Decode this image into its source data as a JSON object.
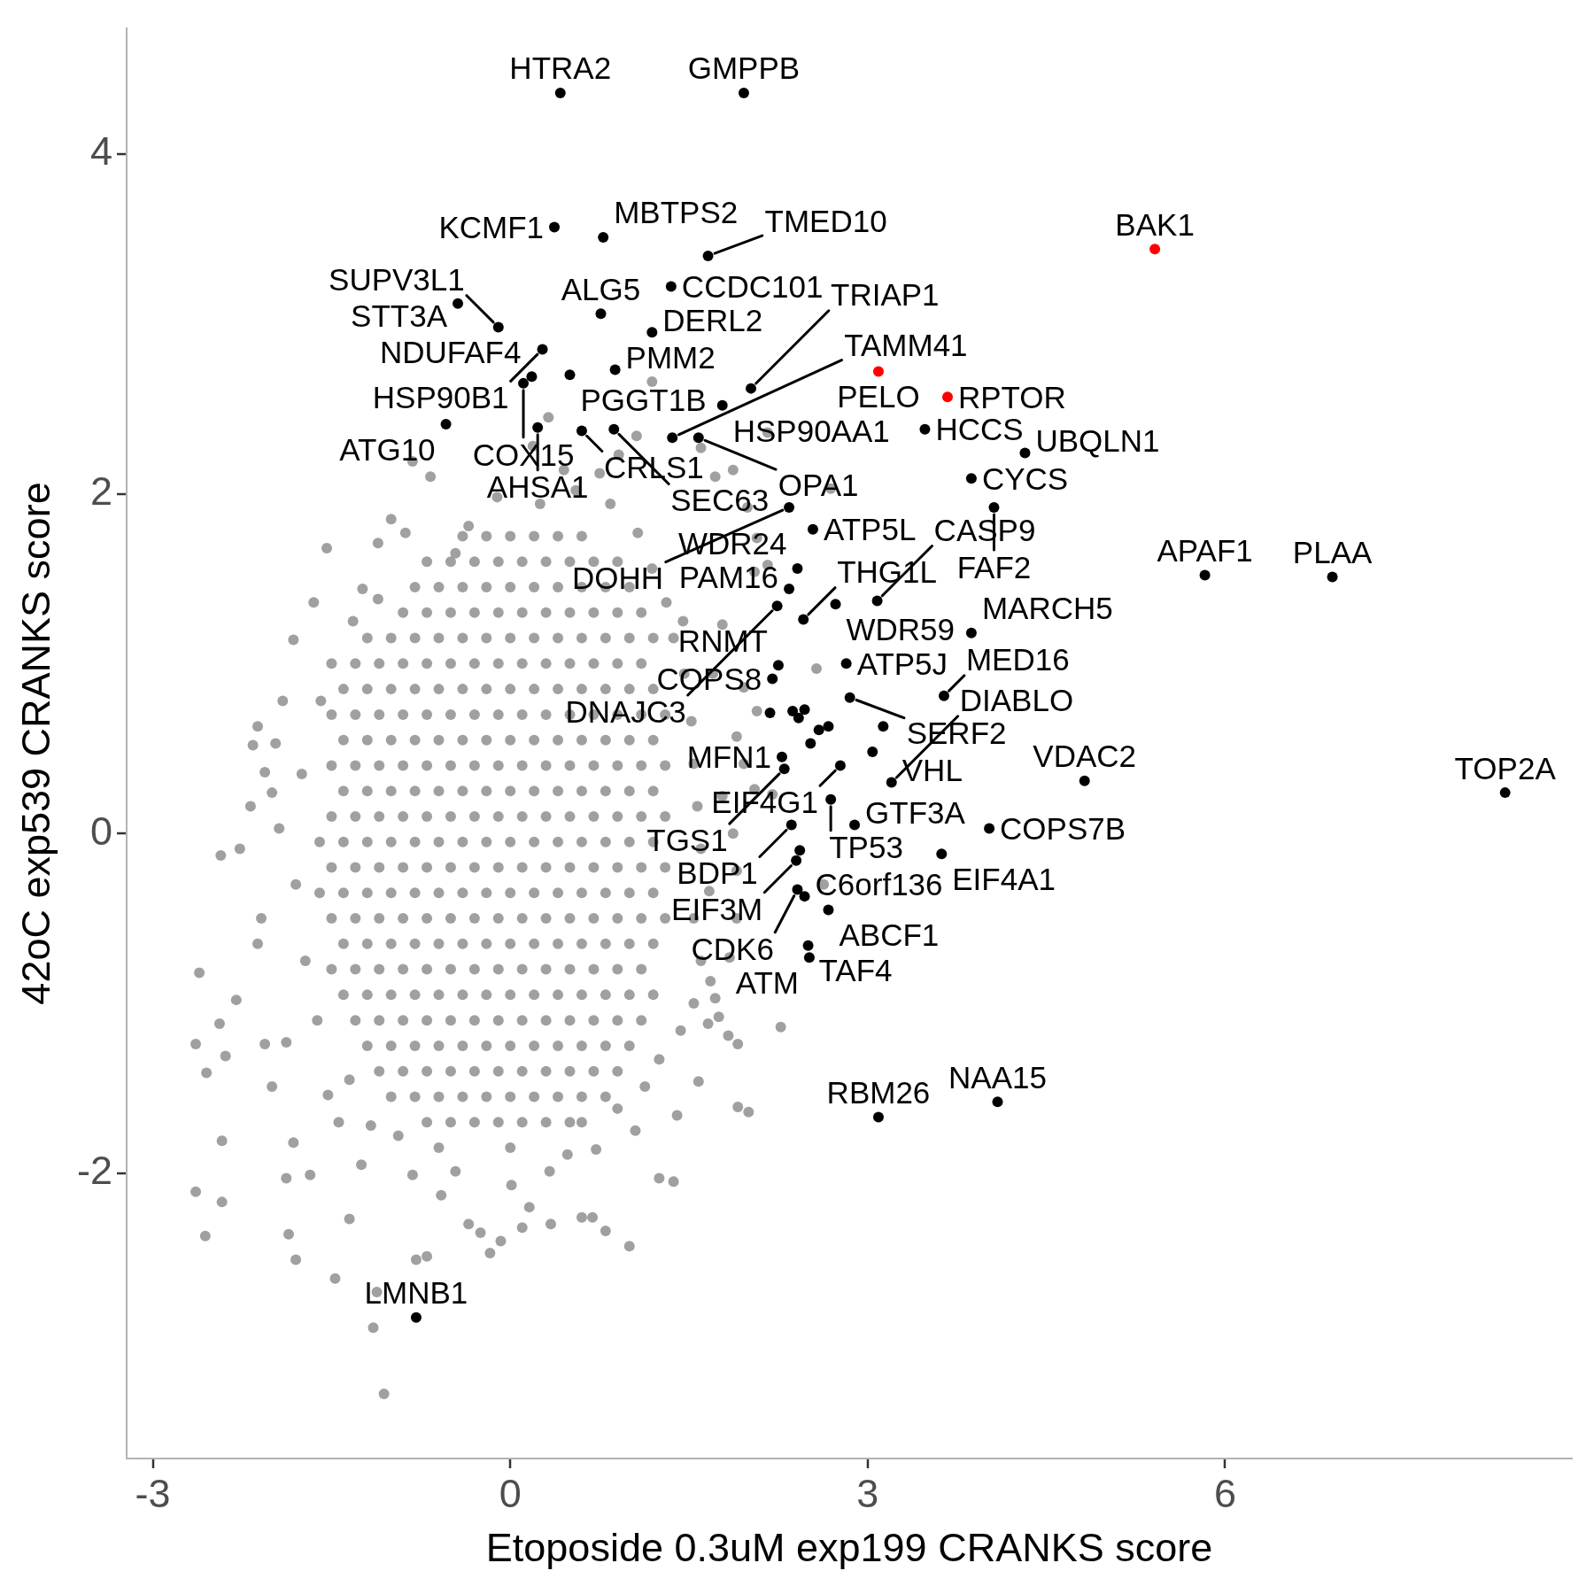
{
  "chart_data": {
    "type": "scatter",
    "xlabel": "Etoposide 0.3uM exp199 CRANKS score",
    "ylabel": "42oC exp539 CRANKS score",
    "xlim": [
      -3.22,
      8.91
    ],
    "ylim": [
      -3.68,
      4.74
    ],
    "xticks": [
      -3,
      0,
      3,
      6
    ],
    "yticks": [
      -2,
      0,
      2,
      4
    ],
    "marker": "circle",
    "series": [
      {
        "color": "#a0a0a0",
        "x": [
          -0.4,
          -0.2,
          0,
          0.2,
          0.4,
          0.6,
          -0.7,
          -0.5,
          -0.3,
          -0.1,
          0.1,
          0.3,
          0.5,
          0.7,
          0.9,
          -0.8,
          -0.6,
          -0.4,
          -0.2,
          0,
          0.2,
          0.4,
          0.6,
          0.8,
          1,
          -0.9,
          -0.7,
          -0.5,
          -0.3,
          -0.1,
          0.1,
          0.3,
          0.5,
          0.7,
          0.9,
          1.1,
          -1.2,
          -1,
          -0.8,
          -0.6,
          -0.4,
          -0.2,
          0,
          0.2,
          0.4,
          0.6,
          0.8,
          1,
          1.2,
          -1.3,
          -1.1,
          -0.9,
          -0.7,
          -0.5,
          -0.3,
          -0.1,
          0.1,
          0.3,
          0.5,
          0.7,
          0.9,
          1.1,
          -1.4,
          -1.2,
          -1,
          -0.8,
          -0.6,
          -0.4,
          -0.2,
          0,
          0.2,
          0.4,
          0.6,
          0.8,
          1,
          1.2,
          -1.5,
          -1.3,
          -1.1,
          -0.9,
          -0.7,
          -0.5,
          -0.3,
          -0.1,
          0.1,
          0.3,
          0.5,
          0.7,
          0.9,
          1.1,
          1.3,
          -1.4,
          -1.2,
          -1,
          -0.8,
          -0.6,
          -0.4,
          -0.2,
          0,
          0.2,
          0.4,
          0.6,
          0.8,
          1,
          1.2,
          -1.5,
          -1.3,
          -1.1,
          -0.9,
          -0.7,
          -0.5,
          -0.3,
          -0.1,
          0.1,
          0.3,
          0.5,
          0.7,
          0.9,
          1.1,
          1.3,
          -1.4,
          -1.2,
          -1,
          -0.8,
          -0.6,
          -0.4,
          -0.2,
          0,
          0.2,
          0.4,
          0.6,
          0.8,
          1,
          1.2,
          -1.5,
          -1.3,
          -1.1,
          -0.9,
          -0.7,
          -0.5,
          -0.3,
          -0.1,
          0.1,
          0.3,
          0.5,
          0.7,
          0.9,
          1.1,
          1.3,
          -1.6,
          -1.4,
          -1.2,
          -1,
          -0.8,
          -0.6,
          -0.4,
          -0.2,
          0,
          0.2,
          0.4,
          0.6,
          0.8,
          1,
          1.2,
          -1.5,
          -1.3,
          -1.1,
          -0.9,
          -0.7,
          -0.5,
          -0.3,
          -0.1,
          0.1,
          0.3,
          0.5,
          0.7,
          0.9,
          1.1,
          1.3,
          -1.6,
          -1.4,
          -1.2,
          -1,
          -0.8,
          -0.6,
          -0.4,
          -0.2,
          0,
          0.2,
          0.4,
          0.6,
          0.8,
          1,
          1.2,
          -1.5,
          -1.3,
          -1.1,
          -0.9,
          -0.7,
          -0.5,
          -0.3,
          -0.1,
          0.1,
          0.3,
          0.5,
          0.7,
          0.9,
          1.1,
          1.3,
          -1.4,
          -1.2,
          -1,
          -0.8,
          -0.6,
          -0.4,
          -0.2,
          0,
          0.2,
          0.4,
          0.6,
          0.8,
          1,
          1.2,
          -1.5,
          -1.3,
          -1.1,
          -0.9,
          -0.7,
          -0.5,
          -0.3,
          -0.1,
          0.1,
          0.3,
          0.5,
          0.7,
          0.9,
          1.1,
          -1.4,
          -1.2,
          -1,
          -0.8,
          -0.6,
          -0.4,
          -0.2,
          0,
          0.2,
          0.4,
          0.6,
          0.8,
          1,
          1.2,
          -1.3,
          -1.1,
          -0.9,
          -0.7,
          -0.5,
          -0.3,
          -0.1,
          0.1,
          0.3,
          0.5,
          0.7,
          0.9,
          1.1,
          -1.2,
          -1,
          -0.8,
          -0.6,
          -0.4,
          -0.2,
          0,
          0.2,
          0.4,
          0.6,
          0.8,
          1,
          -1.1,
          -0.9,
          -0.7,
          -0.5,
          -0.3,
          -0.1,
          0.1,
          0.3,
          0.5,
          0.7,
          0.9,
          -1,
          -0.8,
          -0.6,
          -0.4,
          -0.2,
          0,
          0.2,
          0.4,
          0.6,
          0.8,
          -0.7,
          -0.5,
          -0.3,
          -0.1,
          0.1,
          0.3,
          0.5,
          -1.54,
          -1.65,
          -1.82,
          -2.12,
          -2.16,
          -2.43,
          -2.27,
          -2.61,
          -2.64,
          -2.55,
          -2.44,
          -2.39,
          -2.42,
          -2.64,
          -2.42,
          -2.56,
          -1.8,
          -1.47,
          -1.35,
          -1.88,
          -1.86,
          -1.12,
          -1.15,
          -0.79,
          -0.7,
          -1.06,
          -0.35,
          -0.25,
          -0.08,
          -0.17,
          0.1,
          0.34,
          0.6,
          0.69,
          0.8,
          1,
          1.25,
          1.37,
          1.4,
          1.58,
          1.91,
          2,
          1.91,
          1.83,
          1.66,
          1.75,
          1.72,
          1.68,
          1.84,
          1.9,
          1.9,
          1.87,
          1.78,
          2.05,
          1.96,
          1.9,
          1.96,
          1.7,
          1.78,
          2.05,
          1.99,
          1.87,
          1.72,
          1.6,
          1.19,
          1.06,
          0.91,
          0.75,
          0.45,
          0.19,
          -0.67,
          -0.82,
          -1,
          -0.88,
          -1.11,
          -1.24,
          -1.11,
          -1.32,
          -1.5,
          -1.59,
          -1.91,
          -1.97,
          -2.06,
          -2,
          -2.18,
          -1.94,
          -2.09,
          -2.12,
          -2.3,
          -2.06,
          -1.88,
          -2,
          -1.82,
          -1.68,
          -1.53,
          -1.44,
          -1.17,
          -0.94,
          -0.82,
          -0.58,
          -0.46,
          0.01,
          0.16,
          0.33,
          0.48,
          0.72,
          0.9,
          1.13,
          1.25,
          1.43,
          1.54,
          1.6,
          1.54,
          1.67,
          1.6,
          1.57,
          1.54,
          1.52,
          1.46,
          1.37,
          1.31,
          1.19,
          1.07,
          0.84,
          0.55,
          0.25,
          -0.11,
          -0.35,
          -0.46,
          2.27,
          2.16,
          2.69,
          2.57,
          0.32,
          2.16,
          2.07,
          2.2,
          2.63,
          2.07,
          -1.75,
          -1.8,
          -1.72,
          -1.62,
          -1.35,
          -1.25,
          -0.6,
          0,
          0.6,
          1.05,
          1.45
        ],
        "values": [
          1.75,
          1.75,
          1.75,
          1.75,
          1.75,
          1.75,
          1.6,
          1.6,
          1.6,
          1.6,
          1.6,
          1.6,
          1.6,
          1.6,
          1.6,
          1.45,
          1.45,
          1.45,
          1.45,
          1.45,
          1.45,
          1.45,
          1.45,
          1.45,
          1.45,
          1.3,
          1.3,
          1.3,
          1.3,
          1.3,
          1.3,
          1.3,
          1.3,
          1.3,
          1.3,
          1.3,
          1.15,
          1.15,
          1.15,
          1.15,
          1.15,
          1.15,
          1.15,
          1.15,
          1.15,
          1.15,
          1.15,
          1.15,
          1.15,
          1,
          1,
          1,
          1,
          1,
          1,
          1,
          1,
          1,
          1,
          1,
          1,
          1,
          0.85,
          0.85,
          0.85,
          0.85,
          0.85,
          0.85,
          0.85,
          0.85,
          0.85,
          0.85,
          0.85,
          0.85,
          0.85,
          0.85,
          0.7,
          0.7,
          0.7,
          0.7,
          0.7,
          0.7,
          0.7,
          0.7,
          0.7,
          0.7,
          0.7,
          0.7,
          0.7,
          0.7,
          0.7,
          0.55,
          0.55,
          0.55,
          0.55,
          0.55,
          0.55,
          0.55,
          0.55,
          0.55,
          0.55,
          0.55,
          0.55,
          0.55,
          0.55,
          0.4,
          0.4,
          0.4,
          0.4,
          0.4,
          0.4,
          0.4,
          0.4,
          0.4,
          0.4,
          0.4,
          0.4,
          0.4,
          0.4,
          0.4,
          0.25,
          0.25,
          0.25,
          0.25,
          0.25,
          0.25,
          0.25,
          0.25,
          0.25,
          0.25,
          0.25,
          0.25,
          0.25,
          0.25,
          0.1,
          0.1,
          0.1,
          0.1,
          0.1,
          0.1,
          0.1,
          0.1,
          0.1,
          0.1,
          0.1,
          0.1,
          0.1,
          0.1,
          0.1,
          -0.05,
          -0.05,
          -0.05,
          -0.05,
          -0.05,
          -0.05,
          -0.05,
          -0.05,
          -0.05,
          -0.05,
          -0.05,
          -0.05,
          -0.05,
          -0.05,
          -0.05,
          -0.2,
          -0.2,
          -0.2,
          -0.2,
          -0.2,
          -0.2,
          -0.2,
          -0.2,
          -0.2,
          -0.2,
          -0.2,
          -0.2,
          -0.2,
          -0.2,
          -0.2,
          -0.35,
          -0.35,
          -0.35,
          -0.35,
          -0.35,
          -0.35,
          -0.35,
          -0.35,
          -0.35,
          -0.35,
          -0.35,
          -0.35,
          -0.35,
          -0.35,
          -0.35,
          -0.5,
          -0.5,
          -0.5,
          -0.5,
          -0.5,
          -0.5,
          -0.5,
          -0.5,
          -0.5,
          -0.5,
          -0.5,
          -0.5,
          -0.5,
          -0.5,
          -0.5,
          -0.65,
          -0.65,
          -0.65,
          -0.65,
          -0.65,
          -0.65,
          -0.65,
          -0.65,
          -0.65,
          -0.65,
          -0.65,
          -0.65,
          -0.65,
          -0.65,
          -0.8,
          -0.8,
          -0.8,
          -0.8,
          -0.8,
          -0.8,
          -0.8,
          -0.8,
          -0.8,
          -0.8,
          -0.8,
          -0.8,
          -0.8,
          -0.8,
          -0.95,
          -0.95,
          -0.95,
          -0.95,
          -0.95,
          -0.95,
          -0.95,
          -0.95,
          -0.95,
          -0.95,
          -0.95,
          -0.95,
          -0.95,
          -0.95,
          -1.1,
          -1.1,
          -1.1,
          -1.1,
          -1.1,
          -1.1,
          -1.1,
          -1.1,
          -1.1,
          -1.1,
          -1.1,
          -1.1,
          -1.1,
          -1.25,
          -1.25,
          -1.25,
          -1.25,
          -1.25,
          -1.25,
          -1.25,
          -1.25,
          -1.25,
          -1.25,
          -1.25,
          -1.25,
          -1.4,
          -1.4,
          -1.4,
          -1.4,
          -1.4,
          -1.4,
          -1.4,
          -1.4,
          -1.4,
          -1.4,
          -1.4,
          -1.55,
          -1.55,
          -1.55,
          -1.55,
          -1.55,
          -1.55,
          -1.55,
          -1.55,
          -1.55,
          -1.55,
          -1.7,
          -1.7,
          -1.7,
          -1.7,
          -1.7,
          -1.7,
          -1.7,
          1.68,
          1.36,
          1.14,
          0.63,
          0.52,
          -0.13,
          -0.09,
          -0.82,
          -1.24,
          -1.41,
          -1.12,
          -1.31,
          -1.81,
          -2.11,
          -2.17,
          -2.37,
          -2.51,
          -2.62,
          -2.27,
          -2.03,
          -2.36,
          -2.7,
          -2.91,
          -2.51,
          -2.49,
          -3.3,
          -2.3,
          -2.35,
          -2.4,
          -2.47,
          -2.32,
          -2.3,
          -2.26,
          -2.26,
          -2.34,
          -2.43,
          -2.03,
          -2.05,
          -1.66,
          -1.46,
          -1.61,
          -1.64,
          -1.24,
          -1.19,
          -1.12,
          -1.08,
          -0.97,
          -0.87,
          -0.73,
          -0.5,
          -0.22,
          0,
          0.22,
          0.26,
          0.41,
          0.57,
          0.86,
          0.94,
          1.23,
          1.54,
          1.92,
          2.14,
          2.1,
          2.27,
          2.66,
          2.34,
          2.23,
          2.12,
          2.14,
          2.28,
          2.1,
          2.19,
          1.85,
          1.77,
          1.71,
          1.44,
          1.38,
          1.25,
          1,
          0.78,
          0.78,
          0.53,
          0.36,
          0.24,
          0.16,
          0.03,
          -0.5,
          -0.65,
          -0.98,
          -1.24,
          -1.23,
          -1.49,
          -1.82,
          -2.01,
          -1.54,
          -1.7,
          -1.72,
          -1.78,
          -2.01,
          -2.13,
          -1.99,
          -2.07,
          -2.2,
          -1.99,
          -1.89,
          -1.86,
          -1.62,
          -1.49,
          -1.33,
          -1.16,
          -1,
          -0.75,
          -0.5,
          -0.34,
          -0.09,
          0.16,
          0.41,
          0.66,
          0.94,
          1.15,
          1.36,
          1.56,
          1.77,
          1.94,
          2.02,
          1.94,
          1.98,
          1.81,
          1.65,
          -1.14,
          2.36,
          2.03,
          0.97,
          2.45,
          1.58,
          1.74,
          0.23,
          -0.3,
          0.72,
          0.35,
          -0.3,
          -0.75,
          -1.1,
          -1.45,
          -1.95,
          -1.85,
          -1.85,
          -1.7,
          -1.75,
          1.25
        ]
      },
      {
        "color": "#000000",
        "x": [
          0.42,
          1.96,
          0.37,
          0.78,
          1.66,
          1.35,
          0.76,
          -0.44,
          -0.1,
          1.19,
          0.27,
          0.88,
          0.5,
          0.18,
          0.11,
          2.02,
          1.78,
          -0.54,
          0.23,
          0.6,
          0.87,
          1.36,
          1.58,
          3.48,
          3.87,
          4.32,
          4.06,
          2.34,
          2.54,
          5.83,
          6.9,
          2.41,
          2.34,
          2.24,
          2.73,
          3.08,
          2.46,
          3.87,
          2.82,
          2.25,
          2.2,
          2.85,
          3.64,
          2.28,
          2.77,
          3.2,
          4.82,
          8.35,
          2.69,
          2.3,
          2.36,
          2.89,
          4.02,
          3.62,
          2.4,
          2.41,
          2.47,
          2.67,
          2.5,
          2.51,
          4.09,
          3.09,
          -0.79,
          2.18,
          2.37,
          2.47,
          2.42,
          2.59,
          2.67,
          3.13,
          2.52,
          3.04,
          2.43
        ],
        "values": [
          4.36,
          4.36,
          3.57,
          3.51,
          3.4,
          3.22,
          3.06,
          3.12,
          2.98,
          2.95,
          2.85,
          2.73,
          2.7,
          2.69,
          2.65,
          2.62,
          2.52,
          2.41,
          2.39,
          2.37,
          2.38,
          2.33,
          2.33,
          2.38,
          2.09,
          2.24,
          1.92,
          1.92,
          1.79,
          1.52,
          1.51,
          1.56,
          1.44,
          1.34,
          1.35,
          1.37,
          1.26,
          1.18,
          1,
          0.99,
          0.91,
          0.8,
          0.81,
          0.45,
          0.4,
          0.3,
          0.31,
          0.24,
          0.2,
          0.38,
          0.05,
          0.05,
          0.03,
          -0.12,
          -0.16,
          -0.33,
          -0.37,
          -0.45,
          -0.66,
          -0.73,
          -1.58,
          -1.67,
          -2.85,
          0.71,
          0.72,
          0.73,
          0.68,
          0.61,
          0.63,
          0.63,
          0.53,
          0.48,
          -0.1
        ]
      },
      {
        "color": "#ff0000",
        "x": [
          5.41,
          3.09,
          3.67
        ],
        "values": [
          3.44,
          2.72,
          2.57
        ]
      }
    ],
    "annotations": [
      {
        "text": "HTRA2",
        "x": 0.42,
        "y": 4.36
      },
      {
        "text": "GMPPB",
        "x": 1.96,
        "y": 4.36
      },
      {
        "text": "KCMF1",
        "x": 0.37,
        "y": 3.57
      },
      {
        "text": "MBTPS2",
        "x": 0.78,
        "y": 3.51
      },
      {
        "text": "TMED10",
        "x": 1.66,
        "y": 3.4
      },
      {
        "text": "BAK1",
        "x": 5.41,
        "y": 3.44
      },
      {
        "text": "CCDC101",
        "x": 1.35,
        "y": 3.22
      },
      {
        "text": "ALG5",
        "x": 0.76,
        "y": 3.06
      },
      {
        "text": "STT3A",
        "x": -0.44,
        "y": 3.12
      },
      {
        "text": "SUPV3L1",
        "x": -0.1,
        "y": 2.98
      },
      {
        "text": "DERL2",
        "x": 1.19,
        "y": 2.95
      },
      {
        "text": "HSP90B1",
        "x": 0.27,
        "y": 2.85
      },
      {
        "text": "PELO",
        "x": 3.09,
        "y": 2.72
      },
      {
        "text": "PMM2",
        "x": 0.88,
        "y": 2.73
      },
      {
        "text": "PGGT1B",
        "x": 0.5,
        "y": 2.7
      },
      {
        "text": "NDUFAF4",
        "x": 0.18,
        "y": 2.69
      },
      {
        "text": "COX15",
        "x": 0.11,
        "y": 2.65
      },
      {
        "text": "TRIAP1",
        "x": 2.02,
        "y": 2.62
      },
      {
        "text": "RPTOR",
        "x": 3.67,
        "y": 2.57
      },
      {
        "text": "HSP90AA1",
        "x": 1.78,
        "y": 2.52
      },
      {
        "text": "ATG10",
        "x": -0.54,
        "y": 2.41
      },
      {
        "text": "AHSA1",
        "x": 0.23,
        "y": 2.39
      },
      {
        "text": "CRLS1",
        "x": 0.6,
        "y": 2.37
      },
      {
        "text": "SEC63",
        "x": 0.87,
        "y": 2.38
      },
      {
        "text": "TAMM41",
        "x": 1.36,
        "y": 2.33
      },
      {
        "text": "OPA1",
        "x": 1.58,
        "y": 2.33
      },
      {
        "text": "HCCS",
        "x": 3.48,
        "y": 2.38
      },
      {
        "text": "CYCS",
        "x": 3.87,
        "y": 2.09
      },
      {
        "text": "UBQLN1",
        "x": 4.32,
        "y": 2.24
      },
      {
        "text": "FAF2",
        "x": 4.06,
        "y": 1.92
      },
      {
        "text": "DOHH",
        "x": 2.34,
        "y": 1.92
      },
      {
        "text": "ATP5L",
        "x": 2.54,
        "y": 1.79
      },
      {
        "text": "APAF1",
        "x": 5.83,
        "y": 1.52
      },
      {
        "text": "PLAA",
        "x": 6.9,
        "y": 1.51
      },
      {
        "text": "WDR24",
        "x": 2.41,
        "y": 1.56
      },
      {
        "text": "PAM16",
        "x": 2.34,
        "y": 1.44
      },
      {
        "text": "DNAJC3",
        "x": 2.24,
        "y": 1.34
      },
      {
        "text": "WDR59",
        "x": 2.73,
        "y": 1.35
      },
      {
        "text": "CASP9",
        "x": 3.08,
        "y": 1.37
      },
      {
        "text": "THG1L",
        "x": 2.46,
        "y": 1.26
      },
      {
        "text": "MARCH5",
        "x": 3.87,
        "y": 1.18
      },
      {
        "text": "ATP5J",
        "x": 2.82,
        "y": 1
      },
      {
        "text": "RNMT",
        "x": 2.25,
        "y": 0.99
      },
      {
        "text": "COPS8",
        "x": 2.2,
        "y": 0.91
      },
      {
        "text": "SERF2",
        "x": 2.85,
        "y": 0.8
      },
      {
        "text": "MED16",
        "x": 3.64,
        "y": 0.81
      },
      {
        "text": "MFN1",
        "x": 2.28,
        "y": 0.45
      },
      {
        "text": "EIF4G1",
        "x": 2.77,
        "y": 0.4
      },
      {
        "text": "VHL",
        "x": 3.2,
        "y": 0.3
      },
      {
        "text": "DIABLO",
        "x": 3.2,
        "y": 0.3
      },
      {
        "text": "VDAC2",
        "x": 4.82,
        "y": 0.31
      },
      {
        "text": "TOP2A",
        "x": 8.35,
        "y": 0.24
      },
      {
        "text": "TP53",
        "x": 2.69,
        "y": 0.2
      },
      {
        "text": "TGS1",
        "x": 2.3,
        "y": 0.38
      },
      {
        "text": "BDP1",
        "x": 2.36,
        "y": 0.05
      },
      {
        "text": "GTF3A",
        "x": 2.89,
        "y": 0.05
      },
      {
        "text": "COPS7B",
        "x": 4.02,
        "y": 0.03
      },
      {
        "text": "EIF4A1",
        "x": 3.62,
        "y": -0.12
      },
      {
        "text": "EIF3M",
        "x": 2.4,
        "y": -0.16
      },
      {
        "text": "CDK6",
        "x": 2.41,
        "y": -0.33
      },
      {
        "text": "C6orf136",
        "x": 2.47,
        "y": -0.37
      },
      {
        "text": "ABCF1",
        "x": 2.67,
        "y": -0.45
      },
      {
        "text": "TAF4",
        "x": 2.5,
        "y": -0.66
      },
      {
        "text": "ATM",
        "x": 2.51,
        "y": -0.73
      },
      {
        "text": "NAA15",
        "x": 4.09,
        "y": -1.58
      },
      {
        "text": "RBM26",
        "x": 3.09,
        "y": -1.67
      },
      {
        "text": "LMNB1",
        "x": -0.79,
        "y": -2.85
      }
    ]
  }
}
